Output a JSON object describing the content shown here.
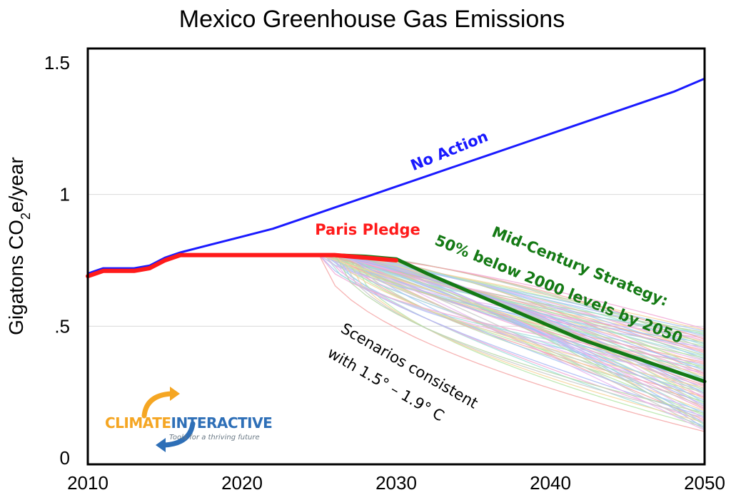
{
  "chart_data": {
    "type": "line",
    "title": "Mexico Greenhouse Gas Emissions",
    "xlabel": "",
    "ylabel": "Gigatons CO2e/year",
    "ylabel_parts": {
      "pre": "Gigatons CO",
      "sub": "2",
      "post": "e/year"
    },
    "xlim": [
      2010,
      2050
    ],
    "ylim": [
      0,
      1.5
    ],
    "x_ticks": [
      2010,
      2020,
      2030,
      2040,
      2050
    ],
    "x_tick_labels": [
      "2010",
      "2020",
      "2030",
      "2040",
      "2050"
    ],
    "y_ticks": [
      0,
      0.5,
      1,
      1.5
    ],
    "y_tick_labels": [
      "0",
      ".5",
      "1",
      "1.5"
    ],
    "grid": "horizontal",
    "series": [
      {
        "name": "No Action",
        "color": "#1a1aff",
        "x": [
          2010,
          2011,
          2013,
          2014,
          2015,
          2016,
          2018,
          2020,
          2022,
          2024,
          2026,
          2028,
          2030,
          2032,
          2034,
          2036,
          2038,
          2040,
          2042,
          2044,
          2046,
          2048,
          2050
        ],
        "y": [
          0.7,
          0.72,
          0.72,
          0.73,
          0.76,
          0.78,
          0.81,
          0.84,
          0.87,
          0.91,
          0.95,
          0.99,
          1.03,
          1.07,
          1.11,
          1.15,
          1.19,
          1.23,
          1.27,
          1.31,
          1.35,
          1.39,
          1.44
        ]
      },
      {
        "name": "Paris Pledge",
        "color": "#ff1a1a",
        "x": [
          2010,
          2011,
          2013,
          2014,
          2015,
          2016,
          2018,
          2020,
          2022,
          2024,
          2026,
          2028,
          2030
        ],
        "y": [
          0.69,
          0.71,
          0.71,
          0.72,
          0.75,
          0.77,
          0.77,
          0.77,
          0.77,
          0.77,
          0.77,
          0.76,
          0.75
        ]
      },
      {
        "name": "Mid-Century Strategy: 50% below 2000 levels by 2050",
        "color": "#157a15",
        "x": [
          2026,
          2028,
          2030,
          2032,
          2034,
          2036,
          2038,
          2040,
          2042,
          2044,
          2046,
          2048,
          2050
        ],
        "y": [
          0.77,
          0.765,
          0.755,
          0.7,
          0.65,
          0.6,
          0.55,
          0.5,
          0.45,
          0.41,
          0.37,
          0.33,
          0.29
        ]
      }
    ],
    "scenario_band": {
      "name": "Scenarios consistent with 1.5° – 1.9° C",
      "start_x": 2025,
      "start_y": 0.77,
      "end_x": 2050,
      "end_y_range": [
        0.1,
        0.49
      ],
      "count": 90
    },
    "annotations": {
      "no_action": "No Action",
      "paris": "Paris Pledge",
      "mid_line1": "Mid-Century Strategy:",
      "mid_line2": "50% below 2000 levels by 2050",
      "scen_line1": "Scenarios consistent",
      "scen_line2": "with 1.5° – 1.9° C"
    }
  },
  "logo": {
    "name_part1": "CLIMATE",
    "name_part2": "INTERACTIVE",
    "tagline": "Tools for a thriving future",
    "color_orange": "#f5a623",
    "color_blue": "#2e6fb7"
  }
}
